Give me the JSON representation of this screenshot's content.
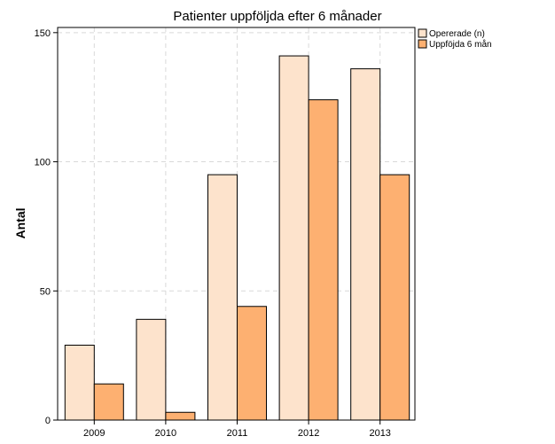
{
  "chart_data": {
    "type": "bar",
    "title": "Patienter uppföljda efter 6 månader",
    "xlabel": "",
    "ylabel": "Antal",
    "categories": [
      "2009",
      "2010",
      "2011",
      "2012",
      "2013"
    ],
    "series": [
      {
        "name": "Opererade (n)",
        "values": [
          29,
          39,
          95,
          141,
          136
        ],
        "color": "#fde3cc"
      },
      {
        "name": "Uppföjda 6 mån",
        "values": [
          14,
          3,
          44,
          124,
          95
        ],
        "color": "#fdb071"
      }
    ],
    "ylim": [
      0,
      152
    ],
    "yticks": [
      0,
      50,
      100,
      150
    ],
    "grid": true,
    "legend_position": "top-right"
  }
}
